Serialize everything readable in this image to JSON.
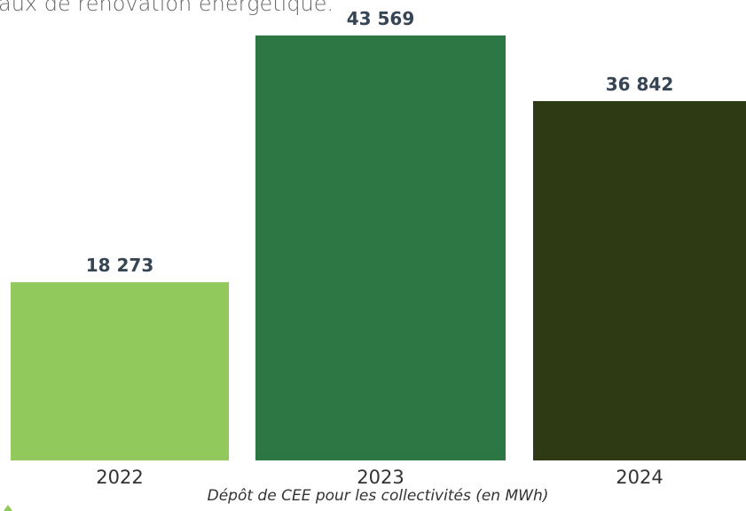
{
  "heading": "aux de rénovation énergétique.",
  "chart_data": {
    "type": "bar",
    "caption": "Dépôt de CEE pour les collectivités (en MWh)",
    "categories": [
      "2022",
      "2023",
      "2024"
    ],
    "values": [
      18273,
      43569,
      36842
    ],
    "value_labels": [
      "18 273",
      "43 569",
      "36 842"
    ],
    "colors": [
      "#92c95c",
      "#2d7744",
      "#2e3a13"
    ]
  }
}
